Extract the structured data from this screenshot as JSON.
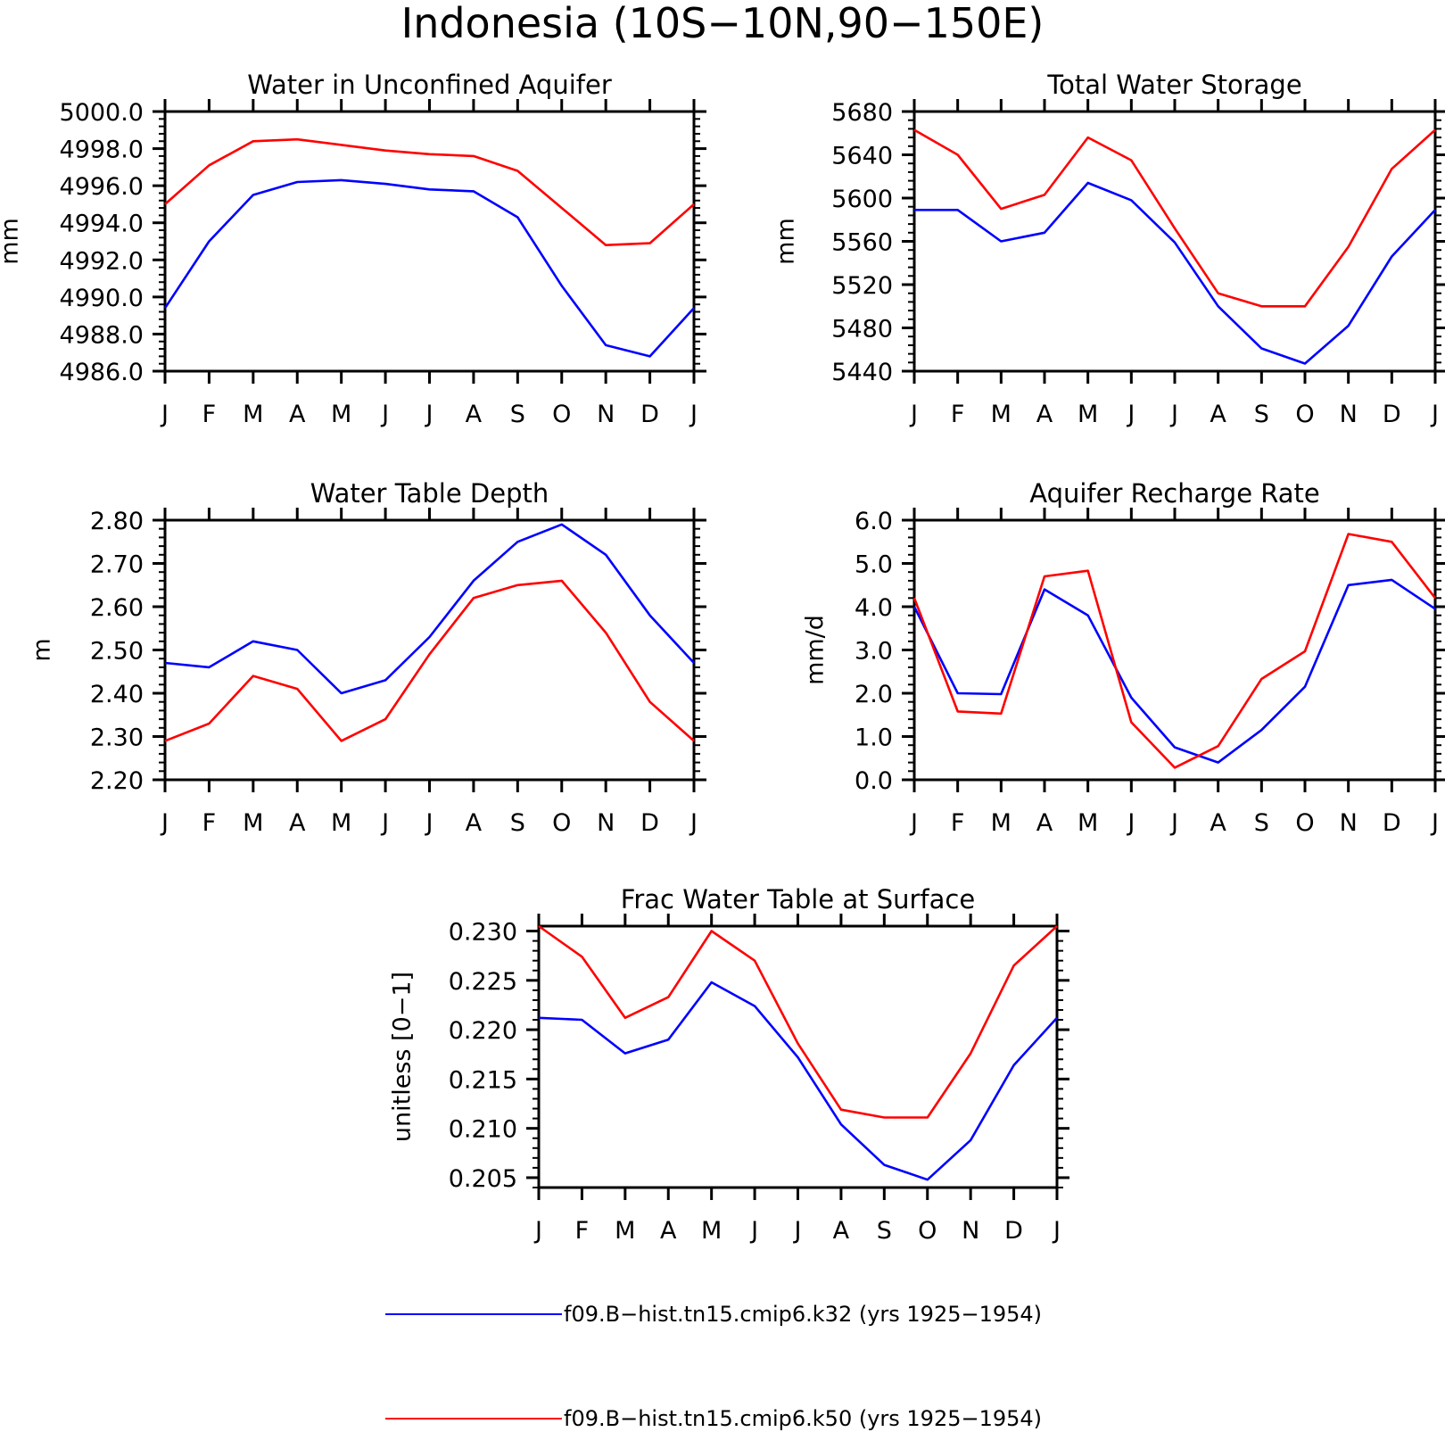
{
  "figure": {
    "title": "Indonesia (10S−10N,90−150E)",
    "legend": [
      {
        "color": "#0000ff",
        "label": "f09.B−hist.tn15.cmip6.k32 (yrs 1925−1954)"
      },
      {
        "color": "#ff0000",
        "label": "f09.B−hist.tn15.cmip6.k50 (yrs 1925−1954)"
      }
    ]
  },
  "chart_data": [
    {
      "type": "line",
      "title": "Water in Unconfined Aquifer",
      "ylabel": "mm",
      "categories": [
        "J",
        "F",
        "M",
        "A",
        "M",
        "J",
        "J",
        "A",
        "S",
        "O",
        "N",
        "D",
        "J"
      ],
      "ylim": [
        4986.0,
        5000.0
      ],
      "yticks": [
        "4986.0",
        "4988.0",
        "4990.0",
        "4992.0",
        "4994.0",
        "4996.0",
        "4998.0",
        "5000.0"
      ],
      "yticks_values": [
        4986,
        4988,
        4990,
        4992,
        4994,
        4996,
        4998,
        5000
      ],
      "series": [
        {
          "color": "#0000ff",
          "values": [
            4989.4,
            4993.0,
            4995.5,
            4996.2,
            4996.3,
            4996.1,
            4995.8,
            4995.7,
            4994.3,
            4990.6,
            4987.4,
            4986.8,
            4989.4
          ]
        },
        {
          "color": "#ff0000",
          "values": [
            4995.0,
            4997.1,
            4998.4,
            4998.5,
            4998.2,
            4997.9,
            4997.7,
            4997.6,
            4996.8,
            4994.8,
            4992.8,
            4992.9,
            4995.0
          ]
        }
      ]
    },
    {
      "type": "line",
      "title": "Total Water Storage",
      "ylabel": "mm",
      "categories": [
        "J",
        "F",
        "M",
        "A",
        "M",
        "J",
        "J",
        "A",
        "S",
        "O",
        "N",
        "D",
        "J"
      ],
      "ylim": [
        5440,
        5680
      ],
      "yticks": [
        "5440",
        "5480",
        "5520",
        "5560",
        "5600",
        "5640",
        "5680"
      ],
      "yticks_values": [
        5440,
        5480,
        5520,
        5560,
        5600,
        5640,
        5680
      ],
      "series": [
        {
          "color": "#0000ff",
          "values": [
            5589,
            5589,
            5560,
            5568,
            5614,
            5598,
            5559,
            5500,
            5461,
            5447,
            5482,
            5546,
            5589
          ]
        },
        {
          "color": "#ff0000",
          "values": [
            5663,
            5640,
            5590,
            5603,
            5656,
            5635,
            5572,
            5512,
            5500,
            5500,
            5555,
            5627,
            5663
          ]
        }
      ]
    },
    {
      "type": "line",
      "title": "Water Table Depth",
      "ylabel": "m",
      "categories": [
        "J",
        "F",
        "M",
        "A",
        "M",
        "J",
        "J",
        "A",
        "S",
        "O",
        "N",
        "D",
        "J"
      ],
      "ylim": [
        2.2,
        2.8
      ],
      "yticks": [
        "2.20",
        "2.30",
        "2.40",
        "2.50",
        "2.60",
        "2.70",
        "2.80"
      ],
      "yticks_values": [
        2.2,
        2.3,
        2.4,
        2.5,
        2.6,
        2.7,
        2.8
      ],
      "series": [
        {
          "color": "#0000ff",
          "values": [
            2.47,
            2.46,
            2.52,
            2.5,
            2.4,
            2.43,
            2.53,
            2.66,
            2.75,
            2.79,
            2.72,
            2.58,
            2.47
          ]
        },
        {
          "color": "#ff0000",
          "values": [
            2.29,
            2.33,
            2.44,
            2.41,
            2.29,
            2.34,
            2.49,
            2.62,
            2.65,
            2.66,
            2.54,
            2.38,
            2.29
          ]
        }
      ]
    },
    {
      "type": "line",
      "title": "Aquifer Recharge Rate",
      "ylabel": "mm/d",
      "categories": [
        "J",
        "F",
        "M",
        "A",
        "M",
        "J",
        "J",
        "A",
        "S",
        "O",
        "N",
        "D",
        "J"
      ],
      "ylim": [
        0.0,
        6.0
      ],
      "yticks": [
        "0.0",
        "1.0",
        "2.0",
        "3.0",
        "4.0",
        "5.0",
        "6.0"
      ],
      "yticks_values": [
        0,
        1,
        2,
        3,
        4,
        5,
        6
      ],
      "series": [
        {
          "color": "#0000ff",
          "values": [
            4.0,
            2.0,
            1.98,
            4.4,
            3.8,
            1.9,
            0.75,
            0.4,
            1.15,
            2.15,
            4.5,
            4.62,
            3.95
          ]
        },
        {
          "color": "#ff0000",
          "values": [
            4.2,
            1.58,
            1.53,
            4.7,
            4.83,
            1.33,
            0.28,
            0.78,
            2.33,
            2.97,
            5.68,
            5.5,
            4.2
          ]
        }
      ]
    },
    {
      "type": "line",
      "title": "Frac Water Table at Surface",
      "ylabel": "unitless [0−1]",
      "categories": [
        "J",
        "F",
        "M",
        "A",
        "M",
        "J",
        "J",
        "A",
        "S",
        "O",
        "N",
        "D",
        "J"
      ],
      "ylim": [
        0.204,
        0.2305
      ],
      "yticks": [
        "0.205",
        "0.210",
        "0.215",
        "0.220",
        "0.225",
        "0.230"
      ],
      "yticks_values": [
        0.205,
        0.21,
        0.215,
        0.22,
        0.225,
        0.23
      ],
      "series": [
        {
          "color": "#0000ff",
          "values": [
            0.2212,
            0.221,
            0.2176,
            0.219,
            0.2248,
            0.2224,
            0.2172,
            0.2104,
            0.2063,
            0.2048,
            0.2088,
            0.2164,
            0.2212
          ]
        },
        {
          "color": "#ff0000",
          "values": [
            0.2305,
            0.2274,
            0.2212,
            0.2233,
            0.23,
            0.227,
            0.2186,
            0.2119,
            0.2111,
            0.2111,
            0.2176,
            0.2265,
            0.2305
          ]
        }
      ]
    }
  ]
}
